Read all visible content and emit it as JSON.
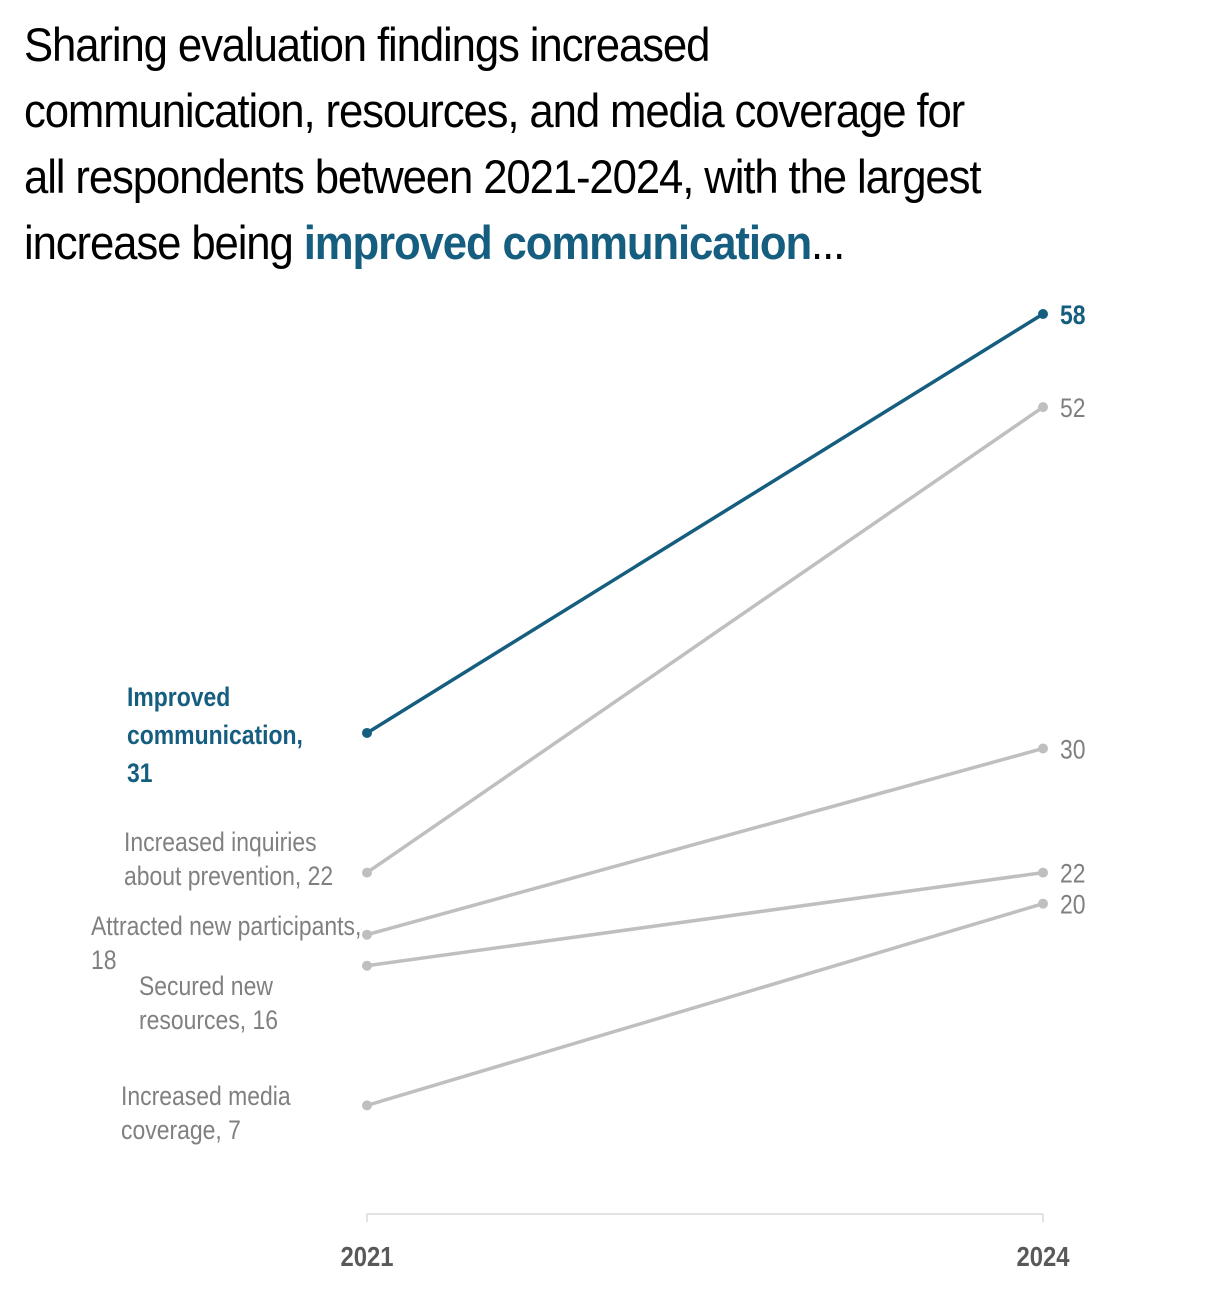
{
  "title": {
    "prefix": "Sharing evaluation findings increased communication, resources, and media coverage for all respondents between 2021-2024, with the largest increase being ",
    "highlight": "improved communication",
    "suffix": "..."
  },
  "chart_data": {
    "type": "line",
    "subtype": "slope",
    "x": [
      "2021",
      "2024"
    ],
    "ylim": [
      0,
      58
    ],
    "grid": false,
    "legend": "none",
    "colors": {
      "highlight": "#155e7f",
      "other": "#bfbfbf",
      "label_other": "#808080",
      "axis_label": "#595959"
    },
    "series": [
      {
        "name": "Improved communication",
        "values": [
          31,
          58
        ],
        "highlight": true,
        "label_2021": [
          "Improved",
          "communication,",
          "31"
        ],
        "label_2024": "58"
      },
      {
        "name": "Increased inquiries about prevention",
        "values": [
          22,
          52
        ],
        "highlight": false,
        "label_2021": [
          "Increased inquiries",
          "about prevention, 22"
        ],
        "label_2024": "52"
      },
      {
        "name": "Attracted new participants",
        "values": [
          18,
          30
        ],
        "highlight": false,
        "label_2021": [
          "Attracted new participants,",
          "18"
        ],
        "label_2024": "30"
      },
      {
        "name": "Secured new resources",
        "values": [
          16,
          22
        ],
        "highlight": false,
        "label_2021": [
          "Secured new",
          "resources, 16"
        ],
        "label_2024": "22"
      },
      {
        "name": "Increased media coverage",
        "values": [
          7,
          20
        ],
        "highlight": false,
        "label_2021": [
          "Increased media",
          "coverage, 7"
        ],
        "label_2024": "20"
      }
    ]
  }
}
